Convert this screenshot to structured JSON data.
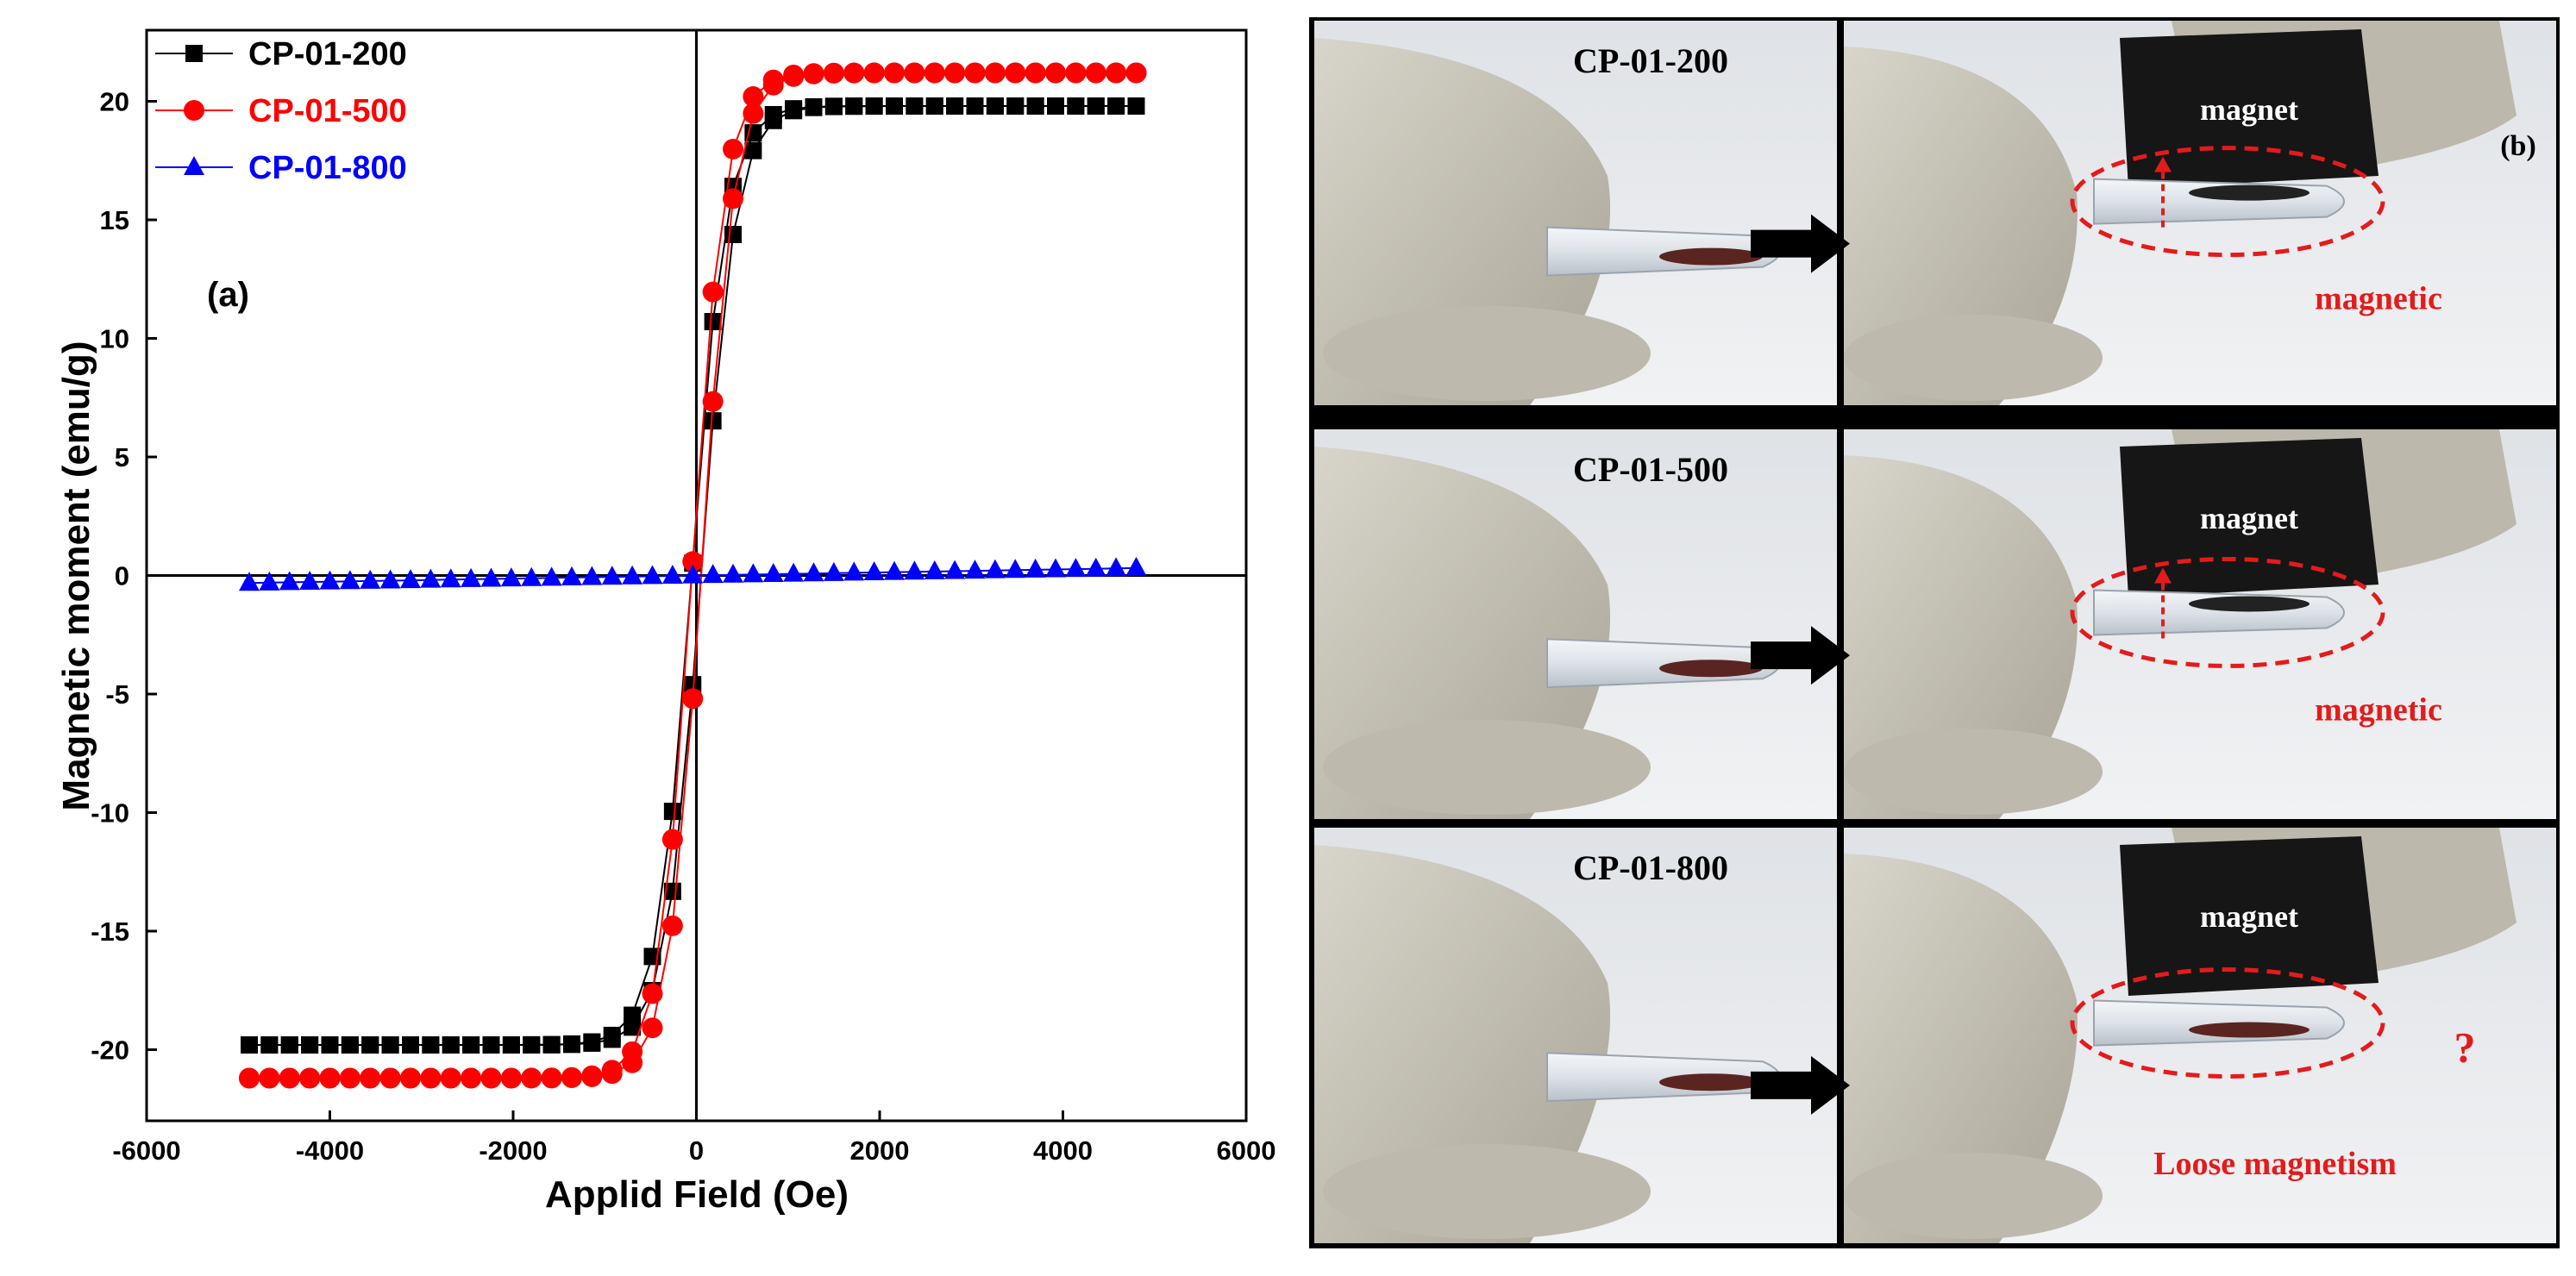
{
  "chart_data": {
    "type": "scatter",
    "panel_label": "(a)",
    "xlabel": "Applid Field (Oe)",
    "ylabel": "Magnetic moment (emu/g)",
    "xlim": [
      -6000,
      6000
    ],
    "ylim": [
      -23,
      23
    ],
    "x_ticks": [
      -6000,
      -4000,
      -2000,
      0,
      2000,
      4000,
      6000
    ],
    "y_ticks": [
      -20,
      -15,
      -10,
      -5,
      0,
      5,
      10,
      15,
      20
    ],
    "grid": false,
    "legend_position": "top-left",
    "series": [
      {
        "name": "CP-01-200",
        "color": "#000000",
        "marker": "square",
        "Ms": 19.8,
        "a": 380,
        "Hc": 50
      },
      {
        "name": "CP-01-500",
        "color": "#ff0000",
        "marker": "circle",
        "Ms": 21.2,
        "a": 360,
        "Hc": 50
      },
      {
        "name": "CP-01-800",
        "color": "#0000ff",
        "marker": "triangle",
        "slope": 6.5e-05
      }
    ]
  },
  "photos": {
    "panel_label": "(b)",
    "rows": [
      {
        "sample": "CP-01-200",
        "magnet_label": "magnet",
        "result": "magnetic"
      },
      {
        "sample": "CP-01-500",
        "magnet_label": "magnet",
        "result": "magnetic"
      },
      {
        "sample": "CP-01-800",
        "magnet_label": "magnet",
        "result": "Loose magnetism",
        "question": "?"
      }
    ]
  },
  "colors": {
    "glove": "#c9c5b8",
    "background": "#e9ebee",
    "magnet": "#161616",
    "annotation": "#e41b1b",
    "separator": "#000000"
  }
}
